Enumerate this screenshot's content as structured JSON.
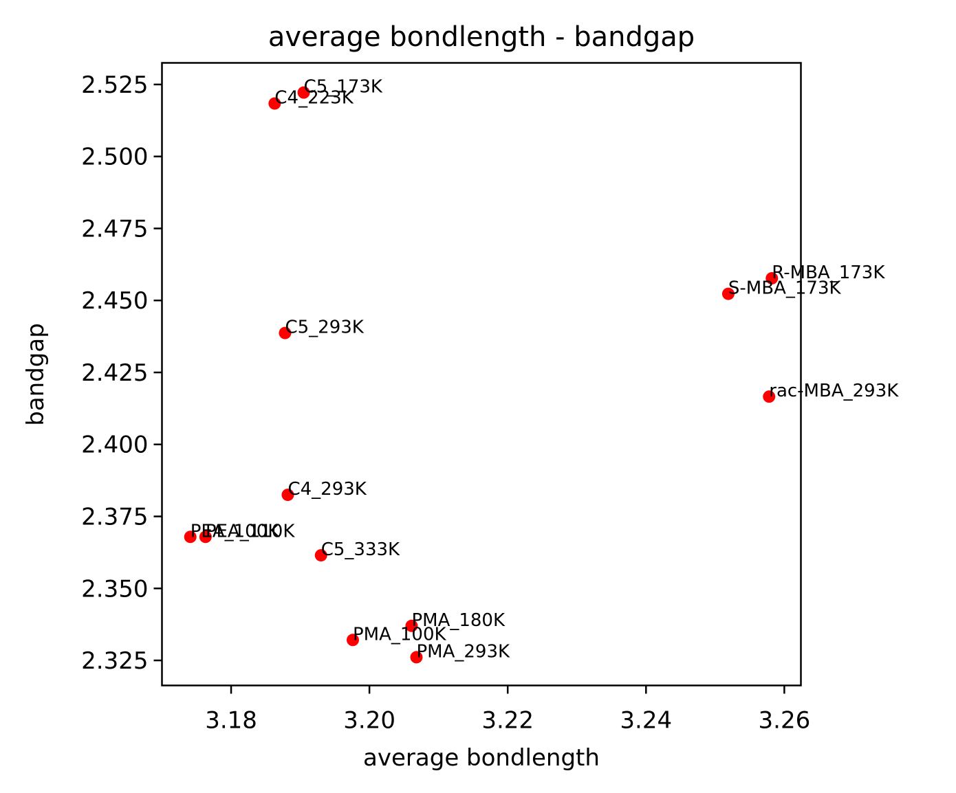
{
  "chart_data": {
    "type": "scatter",
    "title": "average bondlength - bandgap",
    "xlabel": "average bondlength",
    "ylabel": "bandgap",
    "xlim": [
      3.17,
      3.2624
    ],
    "ylim": [
      2.3163,
      2.5325
    ],
    "xticks": [
      3.18,
      3.2,
      3.22,
      3.24,
      3.26
    ],
    "xtick_labels": [
      "3.18",
      "3.20",
      "3.22",
      "3.24",
      "3.26"
    ],
    "yticks": [
      2.325,
      2.35,
      2.375,
      2.4,
      2.425,
      2.45,
      2.475,
      2.5,
      2.525
    ],
    "ytick_labels": [
      "2.325",
      "2.350",
      "2.375",
      "2.400",
      "2.425",
      "2.450",
      "2.475",
      "2.500",
      "2.525"
    ],
    "grid": false,
    "marker_color": "#ff0000",
    "points": [
      {
        "label": "C5_173K",
        "x": 3.1905,
        "y": 2.5222
      },
      {
        "label": "C4_223K",
        "x": 3.1863,
        "y": 2.5184
      },
      {
        "label": "R-MBA_173K",
        "x": 3.2582,
        "y": 2.4577
      },
      {
        "label": "S-MBA_173K",
        "x": 3.2519,
        "y": 2.4523
      },
      {
        "label": "C5_293K",
        "x": 3.1878,
        "y": 2.4387
      },
      {
        "label": "rac-MBA_293K",
        "x": 3.2578,
        "y": 2.4166
      },
      {
        "label": "C4_293K",
        "x": 3.1882,
        "y": 2.3825
      },
      {
        "label": "PEA_100K",
        "x": 3.1741,
        "y": 2.3679
      },
      {
        "label": "PEA_110K",
        "x": 3.1763,
        "y": 2.3679
      },
      {
        "label": "C5_333K",
        "x": 3.193,
        "y": 2.3615
      },
      {
        "label": "PMA_180K",
        "x": 3.2061,
        "y": 2.337
      },
      {
        "label": "PMA_100K",
        "x": 3.1976,
        "y": 2.3321
      },
      {
        "label": "PMA_293K",
        "x": 3.2068,
        "y": 2.3261
      }
    ]
  }
}
